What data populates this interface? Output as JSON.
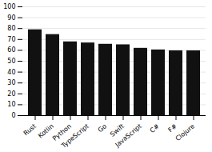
{
  "chart_data": {
    "type": "bar",
    "categories": [
      "Rust",
      "Kotlin",
      "Python",
      "TypeScript",
      "Go",
      "Swift",
      "JavaScript",
      "C#",
      "F#",
      "Clojure"
    ],
    "values": [
      78.9,
      74.5,
      67.8,
      66.8,
      65.6,
      65.1,
      61.9,
      60.4,
      59.6,
      59.6
    ],
    "color": "#111111",
    "ylim": [
      0,
      100
    ],
    "yticks": [
      0,
      10,
      20,
      30,
      40,
      50,
      60,
      70,
      80,
      90,
      100
    ],
    "grid": true
  }
}
